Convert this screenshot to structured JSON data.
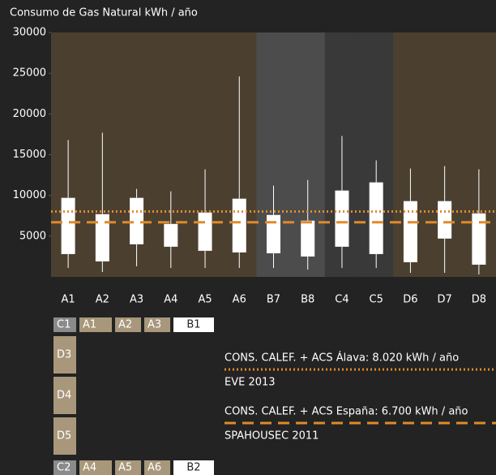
{
  "chart_data": {
    "type": "box",
    "title": "Consumo de Gas Natural kWh / año",
    "categories": [
      "A1",
      "A2",
      "A3",
      "A4",
      "A5",
      "A6",
      "B7",
      "B8",
      "C4",
      "C5",
      "D6",
      "D7",
      "D8"
    ],
    "category_colors": [
      "#4b4030",
      "#4b4030",
      "#4b4030",
      "#4b4030",
      "#4b4030",
      "#4b4030",
      "#4c4c4c",
      "#4c4c4c",
      "#393939",
      "#393939",
      "#4b4030",
      "#4b4030",
      "#4b4030"
    ],
    "min": [
      1100,
      600,
      1300,
      1100,
      1100,
      1100,
      1100,
      900,
      1100,
      1100,
      500,
      500,
      300
    ],
    "q1": [
      2800,
      1900,
      4000,
      3700,
      3200,
      3000,
      2900,
      2500,
      3700,
      2800,
      1800,
      4700,
      1500
    ],
    "q3": [
      9700,
      7700,
      9700,
      6500,
      7900,
      9600,
      7600,
      6900,
      10600,
      11600,
      9300,
      9300,
      7800
    ],
    "max": [
      16800,
      17700,
      10800,
      10500,
      13200,
      24600,
      11200,
      11900,
      17300,
      14300,
      13300,
      13600,
      13200
    ],
    "box_color": "#ffffff",
    "ylim": [
      0,
      30000
    ],
    "yticks": [
      5000,
      10000,
      15000,
      20000,
      25000,
      30000
    ],
    "grid": false,
    "reference_lines": [
      {
        "value": 8020,
        "label": "CONS. CALEF. + ACS Álava: 8.020 kWh / año",
        "source": "EVE 2013",
        "style": "dotted",
        "color": "#e08a2a"
      },
      {
        "value": 6700,
        "label": "CONS. CALEF. + ACS España: 6.700 kWh / año",
        "source": "SPAHOUSEC 2011",
        "style": "dashed",
        "color": "#e08a2a"
      }
    ],
    "key": {
      "top": [
        {
          "label": "C1",
          "color": "#8a8a8a"
        },
        {
          "label": "A1",
          "color": "#a8977a"
        },
        {
          "label": "A2",
          "color": "#a8977a"
        },
        {
          "label": "A3",
          "color": "#a8977a"
        },
        {
          "label": "B1",
          "color": "#ffffff"
        }
      ],
      "left": [
        {
          "label": "D3",
          "color": "#a8977a"
        },
        {
          "label": "D4",
          "color": "#a8977a"
        },
        {
          "label": "D5",
          "color": "#a8977a"
        }
      ],
      "bottom": [
        {
          "label": "C2",
          "color": "#8a8a8a"
        },
        {
          "label": "A4",
          "color": "#a8977a"
        },
        {
          "label": "A5",
          "color": "#a8977a"
        },
        {
          "label": "A6",
          "color": "#a8977a"
        },
        {
          "label": "B2",
          "color": "#ffffff"
        }
      ]
    }
  }
}
